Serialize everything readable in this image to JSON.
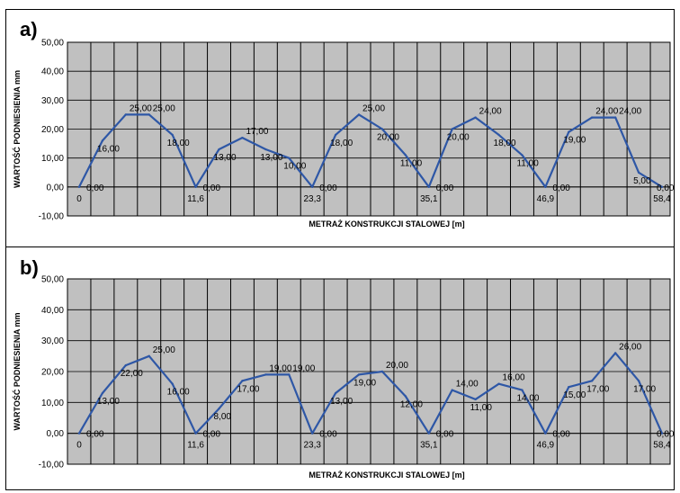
{
  "chart_data": [
    {
      "type": "line",
      "panel_label": "a)",
      "xlabel": "METRAŻ KONSTRUKCJI STALOWEJ [m]",
      "ylabel": "WARTOŚĆ PODNIESIENIA mm",
      "ylim": [
        -10,
        50
      ],
      "yticks": [
        "-10,00",
        "0,00",
        "10,00",
        "20,00",
        "30,00",
        "40,00",
        "50,00"
      ],
      "xtick_labels": [
        "0",
        "11,6",
        "23,3",
        "35,1",
        "46,9",
        "58,4"
      ],
      "grid": true,
      "series": [
        {
          "color": "#2e57a6",
          "values": [
            0,
            16,
            25,
            25,
            18,
            0,
            13,
            17,
            13,
            10,
            0,
            18,
            25,
            20,
            11,
            0,
            20,
            24,
            18,
            11,
            0,
            19,
            24,
            24,
            5,
            0
          ],
          "point_labels": [
            "0,00",
            "16,00",
            "25,00",
            "25,00",
            "18,00",
            "0,00",
            "13,00",
            "17,00",
            "13,00",
            "10,00",
            "0,00",
            "18,00",
            "25,00",
            "20,00",
            "11,00",
            "0,00",
            "20,00",
            "24,00",
            "18,00",
            "11,00",
            "0,00",
            "19,00",
            "24,00",
            "24,00",
            "5,00",
            "0,00"
          ]
        }
      ]
    },
    {
      "type": "line",
      "panel_label": "b)",
      "xlabel": "METRAŻ KONSTRUKCJI STALOWEJ [m]",
      "ylabel": "WARTOŚĆ PODNIESIENIA mm",
      "ylim": [
        -10,
        50
      ],
      "yticks": [
        "-10,00",
        "0,00",
        "10,00",
        "20,00",
        "30,00",
        "40,00",
        "50,00"
      ],
      "xtick_labels": [
        "0",
        "11,6",
        "23,3",
        "35,1",
        "46,9",
        "58,4"
      ],
      "grid": true,
      "series": [
        {
          "color": "#2e57a6",
          "values": [
            0,
            13,
            22,
            25,
            16,
            0,
            8,
            17,
            19,
            19,
            0,
            13,
            19,
            20,
            12,
            0,
            14,
            11,
            16,
            14,
            0,
            15,
            17,
            26,
            17,
            0
          ],
          "point_labels": [
            "0,00",
            "13,00",
            "22,00",
            "25,00",
            "16,00",
            "0,00",
            "8,00",
            "17,00",
            "19,00",
            "19,00",
            "0,00",
            "13,00",
            "19,00",
            "20,00",
            "12,00",
            "0,00",
            "14,00",
            "11,00",
            "16,00",
            "14,00",
            "0,00",
            "15,00",
            "17,00",
            "26,00",
            "17,00",
            "0,00"
          ]
        }
      ]
    }
  ]
}
